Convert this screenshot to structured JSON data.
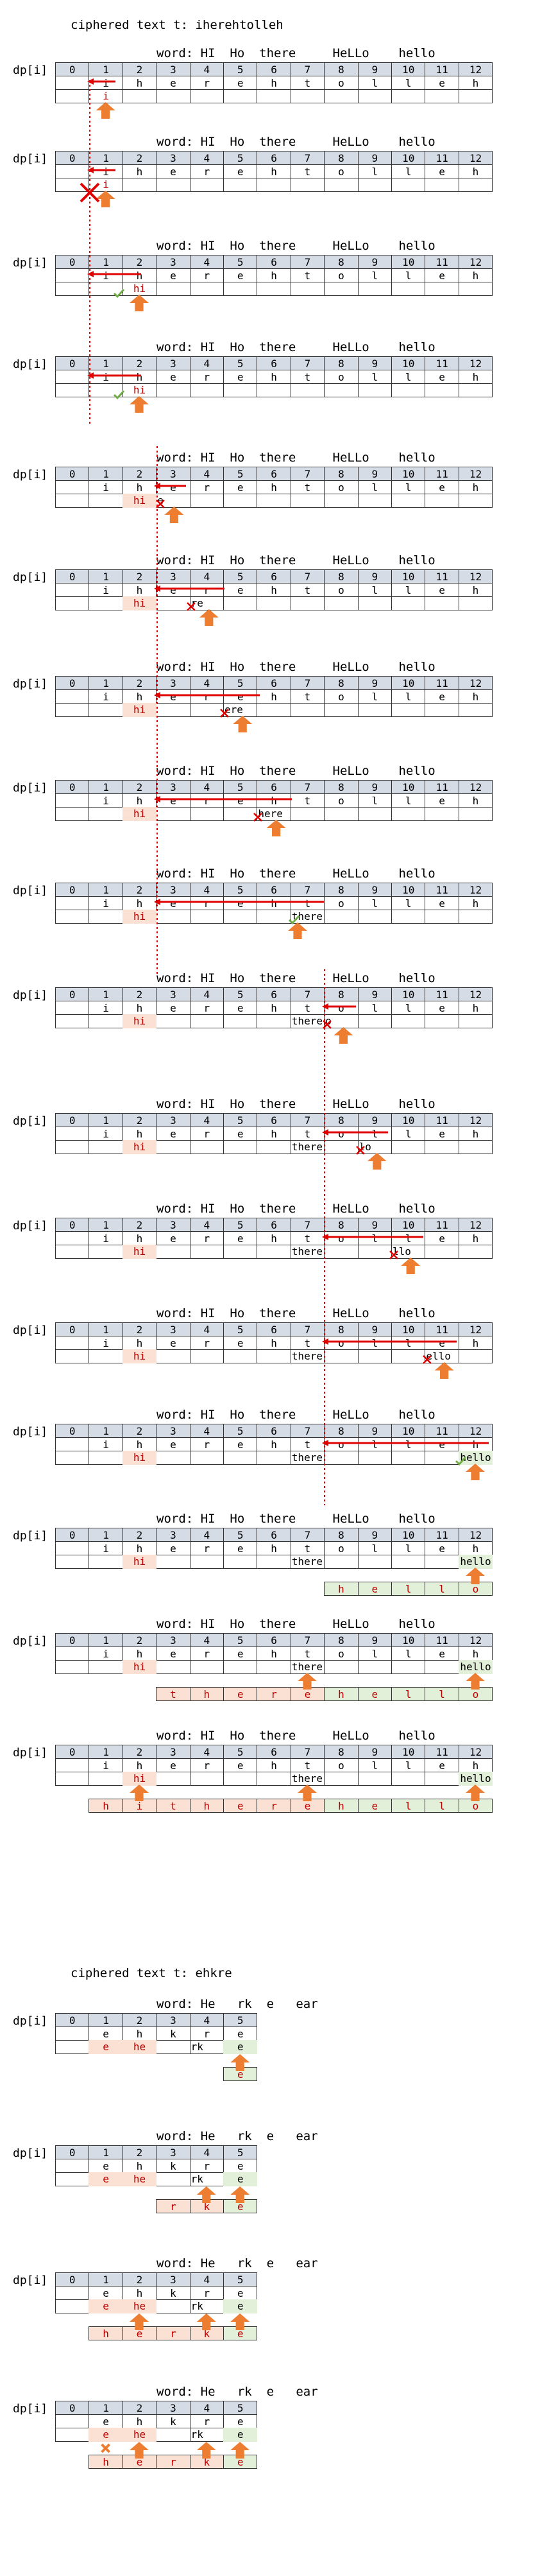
{
  "ex1_label": "ciphered text t: iherehtolleh",
  "ex2_label": "ciphered text t: ehkre",
  "dp_label": "dp[i]",
  "ex1_word": "word: HI  Ho  there     HeLLo    hello",
  "ex2_word": "word: He   rk  e   ear",
  "ex1_idx": [
    "0",
    "1",
    "2",
    "3",
    "4",
    "5",
    "6",
    "7",
    "8",
    "9",
    "10",
    "11",
    "12"
  ],
  "ex1_chars": [
    "i",
    "h",
    "e",
    "r",
    "e",
    "h",
    "t",
    "o",
    "l",
    "l",
    "e",
    "h"
  ],
  "ex2_idx": [
    "0",
    "1",
    "2",
    "3",
    "4",
    "5"
  ],
  "ex2_chars": [
    "e",
    "h",
    "k",
    "r",
    "e"
  ],
  "ex1_panels": [
    {
      "labels": [
        {
          "c": 1,
          "t": "i",
          "cls": "rtx"
        }
      ],
      "out": []
    },
    {
      "labels": [
        {
          "c": 1,
          "t": "i",
          "cls": "rtx"
        }
      ],
      "out": []
    },
    {
      "labels": [
        {
          "c": 2,
          "t": "hi",
          "cls": "rtx"
        }
      ],
      "out": []
    },
    {
      "labels": [
        {
          "c": 2,
          "t": "hi",
          "cls": "rtx"
        }
      ],
      "out": []
    },
    {
      "labels": [
        {
          "c": 2,
          "t": "hi",
          "cls": "rf"
        },
        {
          "c": 3,
          "t": "e",
          "cls": ""
        }
      ],
      "out": []
    },
    {
      "labels": [
        {
          "c": 2,
          "t": "hi",
          "cls": "rf"
        },
        {
          "c": 4,
          "t": "re",
          "cls": ""
        }
      ],
      "out": []
    },
    {
      "labels": [
        {
          "c": 2,
          "t": "hi",
          "cls": "rf"
        },
        {
          "c": 5,
          "t": "ere",
          "cls": ""
        }
      ],
      "out": []
    },
    {
      "labels": [
        {
          "c": 2,
          "t": "hi",
          "cls": "rf"
        },
        {
          "c": 6,
          "t": "here",
          "cls": ""
        }
      ],
      "out": []
    },
    {
      "labels": [
        {
          "c": 2,
          "t": "hi",
          "cls": "rf"
        },
        {
          "c": 7,
          "t": "there",
          "cls": ""
        }
      ],
      "out": []
    },
    {
      "labels": [
        {
          "c": 2,
          "t": "hi",
          "cls": "rf"
        },
        {
          "c": 7,
          "t": "there",
          "cls": ""
        },
        {
          "c": 8,
          "t": "o",
          "cls": ""
        }
      ],
      "out": []
    },
    {
      "labels": [
        {
          "c": 2,
          "t": "hi",
          "cls": "rf"
        },
        {
          "c": 7,
          "t": "there",
          "cls": ""
        },
        {
          "c": 9,
          "t": "lo",
          "cls": ""
        }
      ],
      "out": []
    },
    {
      "labels": [
        {
          "c": 2,
          "t": "hi",
          "cls": "rf"
        },
        {
          "c": 7,
          "t": "there",
          "cls": ""
        },
        {
          "c": 10,
          "t": "llo",
          "cls": ""
        }
      ],
      "out": []
    },
    {
      "labels": [
        {
          "c": 2,
          "t": "hi",
          "cls": "rf"
        },
        {
          "c": 7,
          "t": "there",
          "cls": ""
        },
        {
          "c": 11,
          "t": "ello",
          "cls": ""
        }
      ],
      "out": []
    },
    {
      "labels": [
        {
          "c": 2,
          "t": "hi",
          "cls": "rf"
        },
        {
          "c": 7,
          "t": "there",
          "cls": ""
        },
        {
          "c": 12,
          "t": "hello",
          "cls": "gf"
        }
      ],
      "out": []
    },
    {
      "labels": [
        {
          "c": 2,
          "t": "hi",
          "cls": "rf"
        },
        {
          "c": 7,
          "t": "there",
          "cls": ""
        },
        {
          "c": 12,
          "t": "hello",
          "cls": "gf"
        }
      ],
      "out": [
        {
          "s": 8,
          "t": [
            "h",
            "e",
            "l",
            "l",
            "o"
          ],
          "cls": "gtx"
        }
      ]
    },
    {
      "labels": [
        {
          "c": 2,
          "t": "hi",
          "cls": "rf"
        },
        {
          "c": 7,
          "t": "there",
          "cls": ""
        },
        {
          "c": 12,
          "t": "hello",
          "cls": "gf"
        }
      ],
      "out": [
        {
          "s": 3,
          "t": [
            "t",
            "h",
            "e",
            "r",
            "e"
          ],
          "cls": "rf"
        },
        {
          "s": 8,
          "t": [
            "h",
            "e",
            "l",
            "l",
            "o"
          ],
          "cls": "gtx"
        }
      ]
    },
    {
      "labels": [
        {
          "c": 2,
          "t": "hi",
          "cls": "rf"
        },
        {
          "c": 7,
          "t": "there",
          "cls": ""
        },
        {
          "c": 12,
          "t": "hello",
          "cls": "gf"
        }
      ],
      "out": [
        {
          "s": 1,
          "t": [
            "h",
            "i"
          ],
          "cls": "rf"
        },
        {
          "s": 3,
          "t": [
            "t",
            "h",
            "e",
            "r",
            "e"
          ],
          "cls": "rf"
        },
        {
          "s": 8,
          "t": [
            "h",
            "e",
            "l",
            "l",
            "o"
          ],
          "cls": "gtx"
        }
      ]
    }
  ],
  "ex2_panels": [
    {
      "labels": [
        {
          "c": 1,
          "t": "e",
          "cls": "rf"
        },
        {
          "c": 2,
          "t": "he",
          "cls": "rf"
        },
        {
          "c": 4,
          "t": "rk",
          "cls": ""
        },
        {
          "c": 5,
          "t": "e",
          "cls": "gf"
        }
      ],
      "out": [
        {
          "s": 5,
          "t": [
            "e"
          ],
          "cls": "gtx"
        }
      ]
    },
    {
      "labels": [
        {
          "c": 1,
          "t": "e",
          "cls": "rf"
        },
        {
          "c": 2,
          "t": "he",
          "cls": "rf"
        },
        {
          "c": 4,
          "t": "rk",
          "cls": ""
        },
        {
          "c": 5,
          "t": "e",
          "cls": "gf"
        }
      ],
      "out": [
        {
          "s": 3,
          "t": [
            "r",
            "k"
          ],
          "cls": "rf"
        },
        {
          "s": 5,
          "t": [
            "e"
          ],
          "cls": "gtx"
        }
      ]
    },
    {
      "labels": [
        {
          "c": 1,
          "t": "e",
          "cls": "rf"
        },
        {
          "c": 2,
          "t": "he",
          "cls": "rf"
        },
        {
          "c": 4,
          "t": "rk",
          "cls": ""
        },
        {
          "c": 5,
          "t": "e",
          "cls": "gf"
        }
      ],
      "out": [
        {
          "s": 1,
          "t": [
            "h",
            "e"
          ],
          "cls": "rf"
        },
        {
          "s": 3,
          "t": [
            "r",
            "k"
          ],
          "cls": "rf"
        },
        {
          "s": 5,
          "t": [
            "e"
          ],
          "cls": "gtx"
        }
      ]
    },
    {
      "labels": [
        {
          "c": 1,
          "t": "e",
          "cls": "rf"
        },
        {
          "c": 2,
          "t": "he",
          "cls": "rf"
        },
        {
          "c": 4,
          "t": "rk",
          "cls": ""
        },
        {
          "c": 5,
          "t": "e",
          "cls": "gf"
        }
      ],
      "out": [
        {
          "s": 1,
          "t": [
            "h",
            "e"
          ],
          "cls": "rf"
        },
        {
          "s": 3,
          "t": [
            "r",
            "k"
          ],
          "cls": "rf"
        },
        {
          "s": 5,
          "t": [
            "e"
          ],
          "cls": "gtx"
        }
      ]
    }
  ],
  "colors": {
    "accent_red": "#e00000",
    "arrow_orange": "#ed7d31",
    "check_green": "#70ad47",
    "header_gray": "#d6dce6",
    "peach": "#fbe1d3",
    "mint": "#e2efd9"
  },
  "icons": [
    "red-arrow-left-icon",
    "orange-up-arrow-icon",
    "red-x-icon",
    "green-check-icon"
  ]
}
